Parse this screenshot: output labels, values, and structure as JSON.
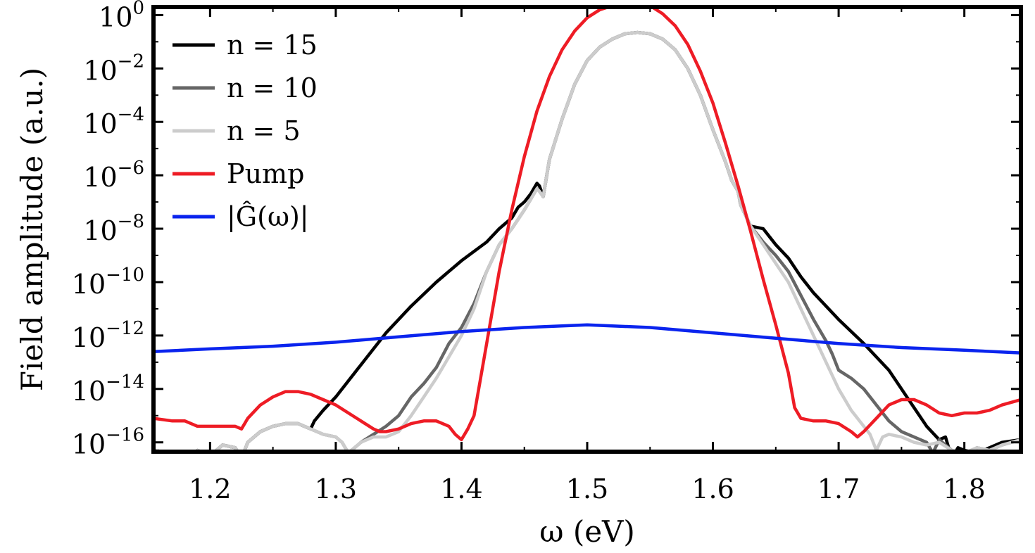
{
  "chart_data": {
    "type": "line",
    "xlabel": "ω (eV)",
    "ylabel": "Field amplitude (a.u.)",
    "xlim": [
      1.155,
      1.845
    ],
    "ylim_log10": [
      -16.35,
      0.3
    ],
    "yscale": "log",
    "grid": false,
    "legend_position": "top-left",
    "x_ticks": [
      {
        "value": 1.2,
        "label": "1.2"
      },
      {
        "value": 1.3,
        "label": "1.3"
      },
      {
        "value": 1.4,
        "label": "1.4"
      },
      {
        "value": 1.5,
        "label": "1.5"
      },
      {
        "value": 1.6,
        "label": "1.6"
      },
      {
        "value": 1.7,
        "label": "1.7"
      },
      {
        "value": 1.8,
        "label": "1.8"
      }
    ],
    "y_ticks": [
      {
        "exp": 0,
        "base": "10",
        "sup": "0"
      },
      {
        "exp": -2,
        "base": "10",
        "sup": "−2"
      },
      {
        "exp": -4,
        "base": "10",
        "sup": "−4"
      },
      {
        "exp": -6,
        "base": "10",
        "sup": "−6"
      },
      {
        "exp": -8,
        "base": "10",
        "sup": "−8"
      },
      {
        "exp": -10,
        "base": "10",
        "sup": "−10"
      },
      {
        "exp": -12,
        "base": "10",
        "sup": "−12"
      },
      {
        "exp": -14,
        "base": "10",
        "sup": "−14"
      },
      {
        "exp": -16,
        "base": "10",
        "sup": "−16"
      }
    ],
    "series": [
      {
        "name": "n = 15",
        "color": "#000000",
        "x": [
          1.155,
          1.17,
          1.18,
          1.19,
          1.2,
          1.21,
          1.22,
          1.225,
          1.23,
          1.24,
          1.25,
          1.26,
          1.27,
          1.275,
          1.28,
          1.283,
          1.29,
          1.3,
          1.32,
          1.34,
          1.36,
          1.38,
          1.4,
          1.42,
          1.43,
          1.435,
          1.44,
          1.445,
          1.45,
          1.455,
          1.46,
          1.462,
          1.465,
          1.47,
          1.48,
          1.49,
          1.5,
          1.51,
          1.52,
          1.53,
          1.54,
          1.55,
          1.56,
          1.57,
          1.58,
          1.59,
          1.6,
          1.61,
          1.615,
          1.62,
          1.622,
          1.63,
          1.64,
          1.65,
          1.66,
          1.67,
          1.68,
          1.7,
          1.72,
          1.74,
          1.76,
          1.77,
          1.78,
          1.785,
          1.79,
          1.795,
          1.8,
          1.81,
          1.82,
          1.83,
          1.845
        ],
        "log10_y": [
          -16.3,
          -16.4,
          -16.6,
          -16.3,
          -16.5,
          -16.1,
          -16.2,
          -16.6,
          -16.0,
          -15.6,
          -15.4,
          -15.3,
          -15.3,
          -15.4,
          -15.5,
          -15.2,
          -14.8,
          -14.3,
          -13.1,
          -11.9,
          -10.9,
          -10.0,
          -9.2,
          -8.5,
          -8.0,
          -7.8,
          -7.6,
          -7.2,
          -7.0,
          -6.7,
          -6.3,
          -6.4,
          -6.8,
          -5.4,
          -3.9,
          -2.6,
          -1.7,
          -1.2,
          -0.9,
          -0.7,
          -0.65,
          -0.7,
          -0.9,
          -1.3,
          -2.0,
          -3.0,
          -4.3,
          -5.5,
          -6.2,
          -6.6,
          -7.1,
          -7.9,
          -8.0,
          -8.6,
          -9.1,
          -9.8,
          -10.4,
          -11.4,
          -12.3,
          -13.3,
          -14.7,
          -15.4,
          -15.9,
          -15.8,
          -16.6,
          -16.2,
          -16.3,
          -16.4,
          -16.2,
          -16.0,
          -15.9
        ]
      },
      {
        "name": "n = 10",
        "color": "#666666",
        "x": [
          1.155,
          1.17,
          1.18,
          1.19,
          1.2,
          1.21,
          1.22,
          1.225,
          1.23,
          1.24,
          1.25,
          1.26,
          1.27,
          1.28,
          1.29,
          1.3,
          1.305,
          1.31,
          1.32,
          1.33,
          1.34,
          1.35,
          1.36,
          1.37,
          1.38,
          1.39,
          1.4,
          1.41,
          1.42,
          1.43,
          1.44,
          1.45,
          1.455,
          1.46,
          1.462,
          1.465,
          1.47,
          1.48,
          1.49,
          1.5,
          1.51,
          1.52,
          1.53,
          1.54,
          1.55,
          1.56,
          1.57,
          1.58,
          1.59,
          1.6,
          1.61,
          1.615,
          1.62,
          1.622,
          1.63,
          1.64,
          1.65,
          1.66,
          1.67,
          1.68,
          1.69,
          1.695,
          1.7,
          1.71,
          1.72,
          1.73,
          1.74,
          1.75,
          1.76,
          1.77,
          1.775,
          1.78,
          1.79,
          1.8,
          1.81,
          1.82,
          1.83,
          1.845
        ],
        "log10_y": [
          -16.3,
          -16.4,
          -16.6,
          -16.3,
          -16.5,
          -16.1,
          -16.2,
          -16.6,
          -16.0,
          -15.6,
          -15.4,
          -15.3,
          -15.3,
          -15.5,
          -15.7,
          -15.8,
          -16.0,
          -16.4,
          -16.0,
          -15.7,
          -15.4,
          -15.0,
          -14.3,
          -13.8,
          -13.2,
          -12.3,
          -11.7,
          -10.8,
          -9.6,
          -8.6,
          -8.0,
          -7.3,
          -6.9,
          -6.5,
          -6.6,
          -6.8,
          -5.4,
          -3.9,
          -2.6,
          -1.7,
          -1.2,
          -0.9,
          -0.7,
          -0.65,
          -0.7,
          -0.9,
          -1.3,
          -2.0,
          -3.0,
          -4.3,
          -5.5,
          -6.2,
          -6.6,
          -7.1,
          -7.9,
          -8.5,
          -9.0,
          -9.6,
          -10.5,
          -11.4,
          -12.2,
          -12.7,
          -13.3,
          -13.6,
          -14.0,
          -14.6,
          -15.2,
          -15.6,
          -15.8,
          -16.0,
          -16.4,
          -15.9,
          -16.3,
          -16.6,
          -16.2,
          -16.3,
          -16.1,
          -15.9
        ]
      },
      {
        "name": "n = 5",
        "color": "#cccccc",
        "x": [
          1.155,
          1.17,
          1.18,
          1.19,
          1.2,
          1.21,
          1.22,
          1.225,
          1.23,
          1.24,
          1.25,
          1.26,
          1.27,
          1.28,
          1.29,
          1.3,
          1.305,
          1.31,
          1.32,
          1.33,
          1.34,
          1.35,
          1.36,
          1.37,
          1.38,
          1.39,
          1.4,
          1.41,
          1.42,
          1.43,
          1.44,
          1.45,
          1.455,
          1.46,
          1.462,
          1.465,
          1.47,
          1.48,
          1.49,
          1.5,
          1.51,
          1.52,
          1.53,
          1.54,
          1.55,
          1.56,
          1.57,
          1.58,
          1.59,
          1.6,
          1.61,
          1.615,
          1.62,
          1.622,
          1.63,
          1.64,
          1.65,
          1.66,
          1.67,
          1.68,
          1.69,
          1.7,
          1.71,
          1.72,
          1.725,
          1.73,
          1.735,
          1.74,
          1.75,
          1.76,
          1.77,
          1.78,
          1.79,
          1.8,
          1.81,
          1.82,
          1.83,
          1.845
        ],
        "log10_y": [
          -16.3,
          -16.4,
          -16.6,
          -16.3,
          -16.5,
          -16.1,
          -16.2,
          -16.6,
          -16.0,
          -15.6,
          -15.4,
          -15.3,
          -15.3,
          -15.5,
          -15.7,
          -15.8,
          -16.0,
          -16.4,
          -16.0,
          -15.8,
          -15.8,
          -15.6,
          -15.0,
          -14.3,
          -13.6,
          -12.8,
          -12.0,
          -11.0,
          -9.6,
          -8.6,
          -8.0,
          -7.3,
          -6.9,
          -6.5,
          -6.6,
          -6.8,
          -5.4,
          -3.9,
          -2.6,
          -1.7,
          -1.2,
          -0.9,
          -0.7,
          -0.65,
          -0.7,
          -0.9,
          -1.3,
          -2.0,
          -3.0,
          -4.3,
          -5.5,
          -6.2,
          -6.6,
          -7.1,
          -7.9,
          -8.6,
          -9.3,
          -10.0,
          -11.0,
          -12.0,
          -13.0,
          -14.0,
          -14.8,
          -15.4,
          -15.7,
          -16.3,
          -15.8,
          -15.7,
          -15.8,
          -16.0,
          -16.1,
          -16.0,
          -16.3,
          -16.4,
          -16.2,
          -16.3,
          -16.1,
          -15.9
        ]
      },
      {
        "name": "Pump",
        "color": "#ee1c25",
        "x": [
          1.155,
          1.17,
          1.18,
          1.19,
          1.2,
          1.21,
          1.22,
          1.225,
          1.23,
          1.24,
          1.25,
          1.26,
          1.27,
          1.28,
          1.29,
          1.3,
          1.31,
          1.32,
          1.33,
          1.335,
          1.34,
          1.35,
          1.36,
          1.37,
          1.38,
          1.39,
          1.395,
          1.4,
          1.405,
          1.41,
          1.42,
          1.43,
          1.44,
          1.45,
          1.46,
          1.47,
          1.48,
          1.49,
          1.5,
          1.51,
          1.52,
          1.53,
          1.54,
          1.55,
          1.56,
          1.57,
          1.58,
          1.59,
          1.6,
          1.61,
          1.62,
          1.63,
          1.64,
          1.65,
          1.66,
          1.665,
          1.67,
          1.68,
          1.69,
          1.7,
          1.71,
          1.715,
          1.72,
          1.73,
          1.74,
          1.75,
          1.76,
          1.77,
          1.78,
          1.79,
          1.8,
          1.81,
          1.82,
          1.83,
          1.845
        ],
        "log10_y": [
          -15.1,
          -15.2,
          -15.2,
          -15.4,
          -15.4,
          -15.4,
          -15.4,
          -15.5,
          -15.1,
          -14.6,
          -14.3,
          -14.1,
          -14.1,
          -14.2,
          -14.4,
          -14.6,
          -14.9,
          -15.2,
          -15.5,
          -15.6,
          -15.6,
          -15.5,
          -15.3,
          -15.2,
          -15.2,
          -15.4,
          -15.7,
          -15.9,
          -15.5,
          -15.0,
          -12.3,
          -9.6,
          -7.3,
          -5.3,
          -3.6,
          -2.3,
          -1.3,
          -0.6,
          -0.1,
          0.2,
          0.35,
          0.45,
          0.45,
          0.35,
          0.05,
          -0.4,
          -1.1,
          -2.1,
          -3.3,
          -4.8,
          -6.4,
          -8.1,
          -9.9,
          -11.6,
          -13.4,
          -14.7,
          -15.1,
          -15.2,
          -15.2,
          -15.3,
          -15.6,
          -15.8,
          -15.6,
          -15.1,
          -14.6,
          -14.4,
          -14.4,
          -14.6,
          -14.9,
          -15.0,
          -14.9,
          -14.9,
          -14.8,
          -14.6,
          -14.4
        ]
      },
      {
        "name": "|Ĝ(ω)|",
        "color": "#0a24ee",
        "x": [
          1.155,
          1.2,
          1.25,
          1.3,
          1.35,
          1.4,
          1.45,
          1.5,
          1.55,
          1.6,
          1.65,
          1.7,
          1.75,
          1.8,
          1.845
        ],
        "log10_y": [
          -12.6,
          -12.5,
          -12.4,
          -12.25,
          -12.05,
          -11.85,
          -11.7,
          -11.6,
          -11.7,
          -11.9,
          -12.1,
          -12.3,
          -12.45,
          -12.55,
          -12.65
        ]
      }
    ]
  }
}
